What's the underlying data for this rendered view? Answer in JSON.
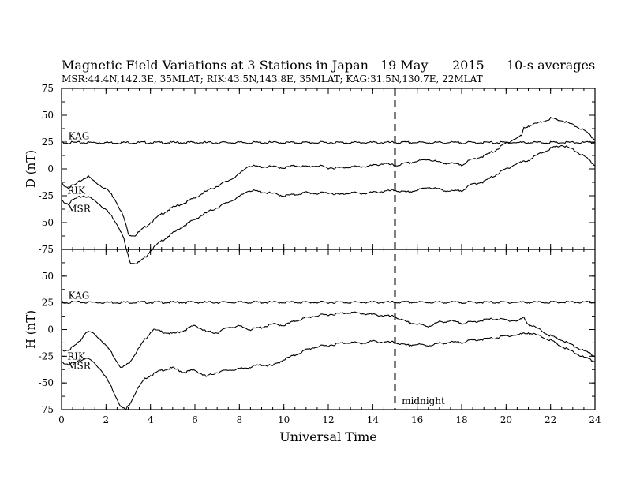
{
  "header": {
    "title": "Magnetic Field Variations at 3 Stations in Japan",
    "date": "19 May",
    "year": "2015",
    "averaging": "10-s averages",
    "stations_line": "MSR:44.4N,142.3E, 35MLAT;  RIK:43.5N,143.8E, 35MLAT;  KAG:31.5N,130.7E, 22MLAT"
  },
  "chart_data": [
    {
      "type": "line",
      "panel": "D",
      "ylabel": "D (nT)",
      "xlabel": "Universal Time",
      "xlim": [
        0,
        24
      ],
      "ylim": [
        -75,
        75
      ],
      "x_ticks": [
        0,
        2,
        4,
        6,
        8,
        10,
        12,
        14,
        16,
        18,
        20,
        22,
        24
      ],
      "y_ticks": [
        -75,
        -50,
        -25,
        0,
        25,
        50,
        75
      ],
      "y_tick_labels": [
        "-75",
        "-50",
        "-25",
        "0",
        "25",
        "50",
        "75"
      ],
      "grid": false,
      "series": [
        {
          "name": "KAG",
          "x": [
            0,
            24
          ],
          "y": [
            24.5,
            24.5
          ]
        },
        {
          "name": "RIK",
          "x": [
            0,
            0.3,
            0.6,
            1.0,
            1.2,
            1.5,
            1.8,
            2.1,
            2.4,
            2.7,
            2.9,
            3.0,
            3.3,
            3.6,
            4.0,
            4.5,
            5.0,
            5.5,
            6.0,
            6.5,
            7.0,
            7.5,
            8.0,
            8.4,
            8.8,
            9.5,
            10.0,
            10.5,
            11.0,
            11.5,
            12.0,
            12.5,
            13.0,
            13.5,
            14.0,
            14.5,
            15.0,
            15.5,
            16.0,
            16.5,
            17.0,
            17.5,
            18.0,
            18.5,
            19.0,
            19.5,
            20.0,
            20.5,
            20.7,
            20.8,
            21.0,
            21.5,
            22.0,
            22.5,
            23.0,
            23.5,
            24.0
          ],
          "y": [
            -14,
            -17,
            -15,
            -9,
            -7,
            -12,
            -16,
            -20,
            -28,
            -40,
            -52,
            -61,
            -62,
            -57,
            -50,
            -42,
            -36,
            -32,
            -27,
            -21,
            -16,
            -11,
            -5,
            3,
            2,
            2,
            1,
            3,
            2,
            3,
            1,
            1,
            2,
            2,
            3,
            5,
            3,
            5,
            7,
            9,
            6,
            5,
            4,
            9,
            12,
            17,
            24,
            29,
            31,
            38,
            40,
            43,
            47,
            45,
            41,
            36,
            27
          ]
        },
        {
          "name": "MSR",
          "x": [
            0,
            0.3,
            0.6,
            1.0,
            1.3,
            1.6,
            2.0,
            2.3,
            2.6,
            2.8,
            2.95,
            3.1,
            3.4,
            3.7,
            4.0,
            4.5,
            5.0,
            5.5,
            6.0,
            6.5,
            7.0,
            7.5,
            8.0,
            8.4,
            8.8,
            9.5,
            10.0,
            10.5,
            11.0,
            11.5,
            12.0,
            12.5,
            13.0,
            13.5,
            14.0,
            14.5,
            15.0,
            15.5,
            16.0,
            16.5,
            17.0,
            17.5,
            18.0,
            18.5,
            19.0,
            19.5,
            20.0,
            20.5,
            21.0,
            21.5,
            22.0,
            22.5,
            23.0,
            23.5,
            24.0
          ],
          "y": [
            -30,
            -32,
            -28,
            -25,
            -27,
            -31,
            -38,
            -45,
            -55,
            -65,
            -78,
            -87,
            -88,
            -84,
            -76,
            -67,
            -60,
            -53,
            -47,
            -41,
            -36,
            -31,
            -26,
            -20,
            -21,
            -23,
            -25,
            -24,
            -22,
            -23,
            -22,
            -24,
            -22,
            -23,
            -22,
            -21,
            -20,
            -22,
            -20,
            -17,
            -19,
            -21,
            -20,
            -14,
            -12,
            -6,
            0,
            5,
            8,
            14,
            19,
            22,
            18,
            12,
            3
          ]
        }
      ],
      "annotations": [
        {
          "text": "KAG",
          "x": 0.2,
          "y": 27.5
        },
        {
          "text": "RIK",
          "x": 0.15,
          "y": -23
        },
        {
          "text": "MSR",
          "x": 0.15,
          "y": -40
        }
      ]
    },
    {
      "type": "line",
      "panel": "H",
      "ylabel": "H (nT)",
      "xlabel": "Universal Time",
      "xlim": [
        0,
        24
      ],
      "ylim": [
        -75,
        75
      ],
      "x_ticks": [
        0,
        2,
        4,
        6,
        8,
        10,
        12,
        14,
        16,
        18,
        20,
        22,
        24
      ],
      "x_tick_labels": [
        "0",
        "2",
        "4",
        "6",
        "8",
        "10",
        "12",
        "14",
        "16",
        "18",
        "20",
        "22",
        "24"
      ],
      "y_ticks": [
        -75,
        -50,
        -25,
        0,
        25,
        50
      ],
      "y_tick_labels": [
        "-75",
        "-50",
        "-25",
        "0",
        "25",
        "50"
      ],
      "grid": false,
      "series": [
        {
          "name": "KAG",
          "x": [
            0,
            24
          ],
          "y": [
            25.5,
            25.5
          ]
        },
        {
          "name": "RIK",
          "x": [
            0,
            0.4,
            0.8,
            1.1,
            1.4,
            1.8,
            2.2,
            2.5,
            2.7,
            3.0,
            3.4,
            3.8,
            4.1,
            4.5,
            5.0,
            5.5,
            6.0,
            6.5,
            7.0,
            7.5,
            8.0,
            8.5,
            9.0,
            9.5,
            10.0,
            10.5,
            11.0,
            11.5,
            12.0,
            12.5,
            13.0,
            13.5,
            14.0,
            14.5,
            15.0,
            15.5,
            16.0,
            16.5,
            17.0,
            17.5,
            18.0,
            18.5,
            19.0,
            19.5,
            20.0,
            20.5,
            20.8,
            21.0,
            21.5,
            22.0,
            22.5,
            23.0,
            23.5,
            24.0
          ],
          "y": [
            -20,
            -18,
            -12,
            -2,
            -3,
            -10,
            -20,
            -30,
            -36,
            -32,
            -20,
            -8,
            0,
            -2,
            -4,
            -1,
            4,
            -2,
            -3,
            2,
            3,
            0,
            2,
            5,
            4,
            8,
            11,
            13,
            14,
            15,
            16,
            15,
            14,
            13,
            12,
            7,
            5,
            3,
            7,
            8,
            6,
            7,
            9,
            10,
            9,
            8,
            11,
            5,
            0,
            -6,
            -10,
            -15,
            -20,
            -25
          ]
        },
        {
          "name": "MSR",
          "x": [
            0,
            0.4,
            0.8,
            1.1,
            1.4,
            1.8,
            2.2,
            2.5,
            2.7,
            2.9,
            3.1,
            3.4,
            3.8,
            4.1,
            4.5,
            5.0,
            5.5,
            6.0,
            6.5,
            7.0,
            7.5,
            8.0,
            8.5,
            9.0,
            9.5,
            10.0,
            10.5,
            11.0,
            11.5,
            12.0,
            12.5,
            13.0,
            13.5,
            14.0,
            14.5,
            15.0,
            15.5,
            16.0,
            16.5,
            17.0,
            17.5,
            18.0,
            18.5,
            19.0,
            19.5,
            20.0,
            20.5,
            21.0,
            21.5,
            22.0,
            22.5,
            23.0,
            23.5,
            24.0
          ],
          "y": [
            -31,
            -32,
            -30,
            -26,
            -30,
            -38,
            -52,
            -65,
            -73,
            -75,
            -68,
            -56,
            -45,
            -42,
            -38,
            -36,
            -40,
            -38,
            -44,
            -40,
            -38,
            -37,
            -35,
            -33,
            -34,
            -28,
            -24,
            -19,
            -16,
            -15,
            -13,
            -12,
            -13,
            -11,
            -12,
            -12,
            -15,
            -14,
            -15,
            -13,
            -12,
            -12,
            -10,
            -9,
            -8,
            -6,
            -5,
            -3,
            -6,
            -10,
            -16,
            -21,
            -26,
            -30
          ]
        }
      ],
      "annotations": [
        {
          "text": "KAG",
          "x": 0.2,
          "y": 29
        },
        {
          "text": "RIK",
          "x": 0.15,
          "y": -28
        },
        {
          "text": "MSR",
          "x": 0.15,
          "y": -37
        },
        {
          "text": "midnight",
          "x": 15.2,
          "y": -70
        }
      ],
      "reference_line": {
        "x": 15,
        "style": "dashed"
      }
    }
  ]
}
